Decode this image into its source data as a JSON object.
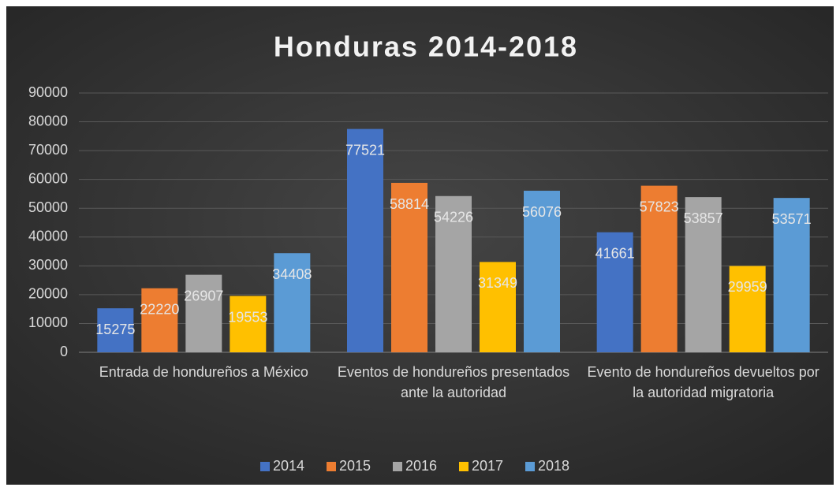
{
  "chart_data": {
    "type": "bar",
    "title": "Honduras 2014-2018",
    "categories": [
      "Entrada de hondureños a México",
      "Eventos de hondureños presentados ante la autoridad",
      "Evento de hondureños devueltos por la autoridad migratoria"
    ],
    "series": [
      {
        "name": "2014",
        "color": "#4472c4",
        "values": [
          15275,
          77521,
          41661
        ]
      },
      {
        "name": "2015",
        "color": "#ed7d31",
        "values": [
          22220,
          58814,
          57823
        ]
      },
      {
        "name": "2016",
        "color": "#a5a5a5",
        "values": [
          26907,
          54226,
          53857
        ]
      },
      {
        "name": "2017",
        "color": "#ffc000",
        "values": [
          19553,
          31349,
          29959
        ]
      },
      {
        "name": "2018",
        "color": "#5b9bd5",
        "values": [
          34408,
          56076,
          53571
        ]
      }
    ],
    "ylim": [
      0,
      90000
    ],
    "yticks": [
      0,
      10000,
      20000,
      30000,
      40000,
      50000,
      60000,
      70000,
      80000,
      90000
    ],
    "grid": true,
    "legend": "bottom"
  }
}
